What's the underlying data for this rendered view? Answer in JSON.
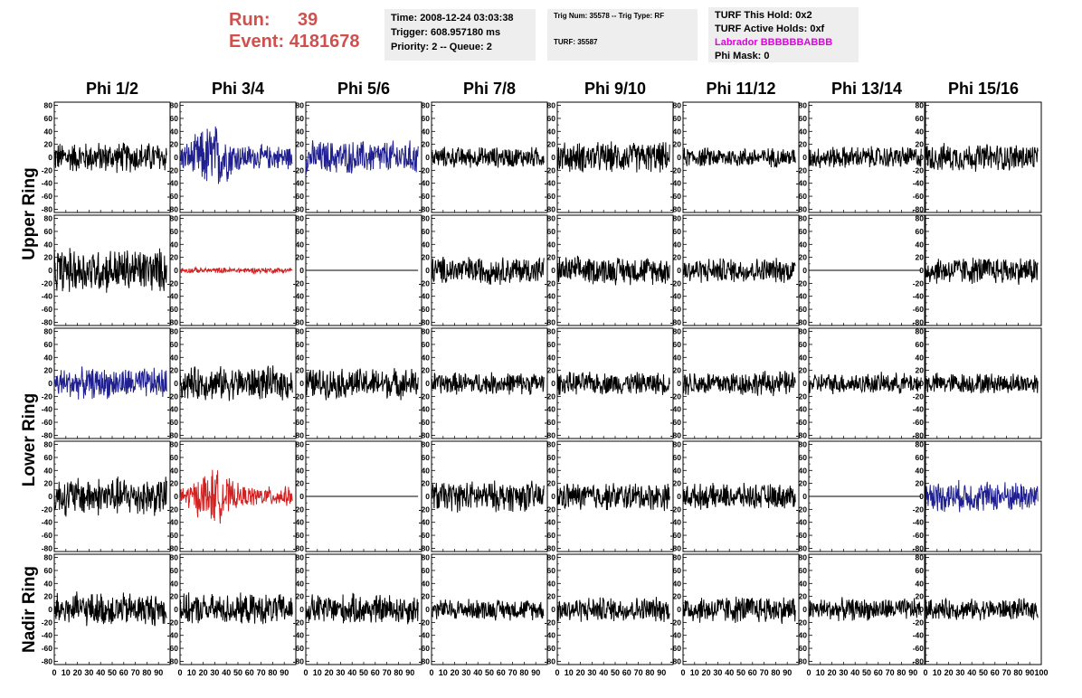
{
  "header": {
    "run_label": "Run:",
    "run_value": "39",
    "event_label": "Event:",
    "event_value": "4181678"
  },
  "info": {
    "time": "Time: 2008-12-24 03:03:38",
    "trigger": "Trigger: 608.957180 ms",
    "priority": "Priority: 2 -- Queue: 2",
    "trig_num": "Trig Num: 35578 -- Trig Type: RF",
    "turf": "TURF: 35587",
    "turf_hold": "TURF This Hold: 0x2",
    "turf_active": "TURF Active Holds: 0xf",
    "labrador": "Labrador BBBBBBABBB",
    "phi_mask": "Phi Mask: 0"
  },
  "colors": {
    "title": "#d0504d",
    "labrador": "#e100e1",
    "info_bg": "#eeeeee",
    "trace_black": "#000000",
    "trace_blue": "#1f1f8f",
    "trace_red": "#d02020"
  },
  "chart_data": {
    "type": "line",
    "columns": [
      "Phi 1/2",
      "Phi 3/4",
      "Phi 5/6",
      "Phi 7/8",
      "Phi 9/10",
      "Phi 11/12",
      "Phi 13/14",
      "Phi 15/16"
    ],
    "rows": [
      {
        "label": "Upper Ring",
        "spans": 2
      },
      {
        "label": "Lower Ring",
        "spans": 2
      },
      {
        "label": "Nadir Ring",
        "spans": 1
      }
    ],
    "ylim": [
      -85,
      85
    ],
    "yticks": [
      80,
      60,
      40,
      20,
      0,
      -20,
      -40,
      -60,
      -80
    ],
    "xlim": [
      0,
      100
    ],
    "xticks": [
      0,
      10,
      20,
      30,
      40,
      50,
      60,
      70,
      80,
      90,
      100
    ],
    "xtick_labels": [
      "0",
      "10",
      "20",
      "30",
      "40",
      "50",
      "60",
      "70",
      "80",
      "90",
      "100"
    ],
    "note_x_end": "90",
    "trace_end_x": 97,
    "grid": false,
    "legend": "none",
    "panels": [
      [
        {
          "color": "black",
          "amp": 22
        },
        {
          "color": "blue",
          "amp": 50,
          "burst": true
        },
        {
          "color": "blue",
          "amp": 24
        },
        {
          "color": "black",
          "amp": 15
        },
        {
          "color": "black",
          "amp": 22
        },
        {
          "color": "black",
          "amp": 14
        },
        {
          "color": "black",
          "amp": 16
        },
        {
          "color": "black",
          "amp": 20
        }
      ],
      [
        {
          "color": "black",
          "amp": 32
        },
        {
          "color": "red",
          "amp": 4
        },
        {
          "color": "black",
          "amp": 0,
          "flat": true
        },
        {
          "color": "black",
          "amp": 20
        },
        {
          "color": "black",
          "amp": 20
        },
        {
          "color": "black",
          "amp": 18
        },
        {
          "color": "black",
          "amp": 0,
          "flat": true
        },
        {
          "color": "black",
          "amp": 20
        }
      ],
      [
        {
          "color": "blue",
          "amp": 22
        },
        {
          "color": "black",
          "amp": 24
        },
        {
          "color": "black",
          "amp": 22
        },
        {
          "color": "black",
          "amp": 16
        },
        {
          "color": "black",
          "amp": 16
        },
        {
          "color": "black",
          "amp": 18
        },
        {
          "color": "black",
          "amp": 15
        },
        {
          "color": "black",
          "amp": 15
        }
      ],
      [
        {
          "color": "black",
          "amp": 28
        },
        {
          "color": "red",
          "amp": 40,
          "burst": true
        },
        {
          "color": "black",
          "amp": 0,
          "flat": true
        },
        {
          "color": "black",
          "amp": 22
        },
        {
          "color": "black",
          "amp": 20
        },
        {
          "color": "black",
          "amp": 18
        },
        {
          "color": "black",
          "amp": 0,
          "flat": true
        },
        {
          "color": "blue",
          "amp": 22
        }
      ],
      [
        {
          "color": "black",
          "amp": 24
        },
        {
          "color": "black",
          "amp": 22
        },
        {
          "color": "black",
          "amp": 22
        },
        {
          "color": "black",
          "amp": 15
        },
        {
          "color": "black",
          "amp": 18
        },
        {
          "color": "black",
          "amp": 20
        },
        {
          "color": "black",
          "amp": 16
        },
        {
          "color": "black",
          "amp": 15
        }
      ]
    ]
  }
}
